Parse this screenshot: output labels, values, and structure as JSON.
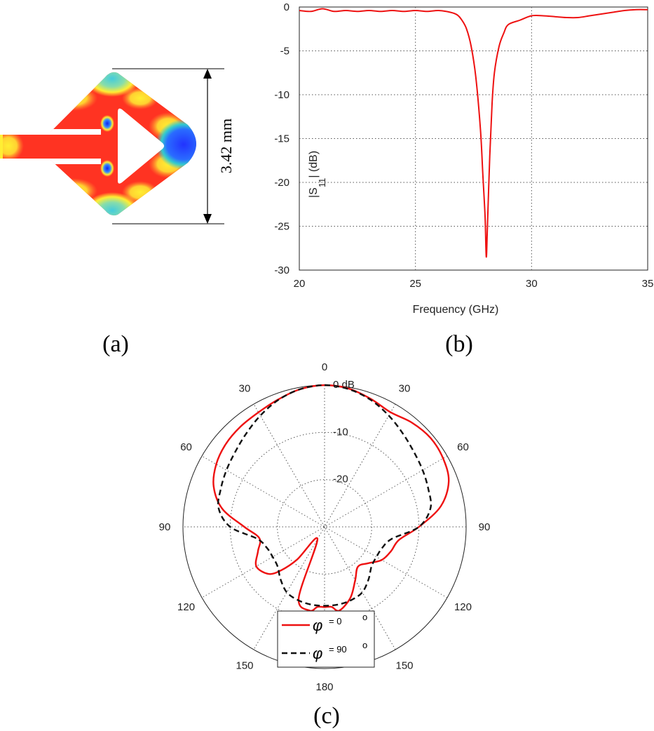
{
  "panels": {
    "a": {
      "caption": "(a)",
      "dimension_label": "3.42 mm",
      "colors": {
        "high": "#ff3322",
        "mid": "#ffee33",
        "low": "#3344ff",
        "mint": "#88ddaa"
      }
    },
    "b": {
      "caption": "(b)"
    },
    "c": {
      "caption": "(c)"
    }
  },
  "chart_data": [
    {
      "type": "line",
      "panel": "b",
      "title": "",
      "xlabel": "Frequency (GHz)",
      "ylabel": "|S",
      "ylabel_sub": "11",
      "ylabel_tail": "| (dB)",
      "xlim": [
        20,
        35
      ],
      "ylim": [
        -30,
        0
      ],
      "xticks": [
        20,
        25,
        30,
        35
      ],
      "yticks": [
        0,
        -5,
        -10,
        -15,
        -20,
        -25,
        -30
      ],
      "grid": true,
      "series": [
        {
          "color": "#ee1111",
          "x": [
            20,
            20.5,
            21,
            21.5,
            22,
            22.5,
            23,
            23.5,
            24,
            24.5,
            25,
            25.5,
            26,
            26.5,
            26.8,
            27,
            27.2,
            27.4,
            27.6,
            27.8,
            27.9,
            28,
            28.05,
            28.1,
            28.2,
            28.3,
            28.4,
            28.6,
            28.8,
            29,
            29.5,
            30,
            30.5,
            31,
            31.5,
            32,
            32.5,
            33,
            33.5,
            34,
            34.5,
            35
          ],
          "y": [
            -0.4,
            -0.5,
            -0.2,
            -0.5,
            -0.4,
            -0.5,
            -0.4,
            -0.5,
            -0.4,
            -0.5,
            -0.4,
            -0.5,
            -0.4,
            -0.6,
            -0.9,
            -1.5,
            -2.5,
            -4.5,
            -8,
            -14,
            -19,
            -24,
            -28.5,
            -25,
            -17,
            -11,
            -7.5,
            -4.5,
            -3,
            -2,
            -1.5,
            -1,
            -1,
            -1.1,
            -1.2,
            -1.2,
            -1,
            -0.8,
            -0.6,
            -0.4,
            -0.3,
            -0.3
          ]
        }
      ]
    },
    {
      "type": "polar",
      "panel": "c",
      "title": "",
      "rlim_db": [
        -30,
        0
      ],
      "ring_labels": [
        "0 dB",
        "-10",
        "-20"
      ],
      "ring_values_db": [
        0,
        -10,
        -20
      ],
      "angle_labels": [
        "0",
        "30",
        "60",
        "90",
        "120",
        "150",
        "180",
        "150",
        "120",
        "90",
        "60",
        "30"
      ],
      "angle_label_degrees": [
        0,
        30,
        60,
        90,
        120,
        150,
        180,
        210,
        240,
        270,
        300,
        330
      ],
      "grid": true,
      "legend": {
        "placement": "bottom-center",
        "entries": [
          {
            "symbol": "φ",
            "text": "= 0",
            "degree": "o"
          },
          {
            "symbol": "φ",
            "text": "= 90",
            "degree": "o"
          }
        ]
      },
      "series": [
        {
          "label": "phi-0",
          "color": "#ee1111",
          "dash": false,
          "theta": [
            0,
            10,
            20,
            30,
            40,
            50,
            60,
            70,
            80,
            90,
            100,
            110,
            120,
            130,
            140,
            150,
            160,
            170,
            175,
            180,
            185,
            190,
            200,
            210,
            220,
            225,
            230,
            240,
            250,
            260,
            270,
            280,
            290,
            300,
            310,
            320,
            330,
            340,
            350
          ],
          "r_db": [
            0,
            -0.3,
            -1.2,
            -2,
            -1.2,
            -0.7,
            -1,
            -2,
            -5,
            -10,
            -14,
            -15,
            -16,
            -18,
            -19,
            -17,
            -14,
            -12,
            -13,
            -13,
            -13,
            -12,
            -14,
            -27,
            -21,
            -17,
            -14.5,
            -13.3,
            -15,
            -16,
            -13,
            -8,
            -5,
            -3.5,
            -2.7,
            -2.3,
            -2,
            -1.3,
            -0.4
          ]
        },
        {
          "label": "phi-90",
          "color": "#111111",
          "dash": true,
          "theta": [
            0,
            10,
            20,
            30,
            40,
            50,
            60,
            70,
            80,
            90,
            100,
            110,
            120,
            130,
            140,
            150,
            160,
            170,
            180,
            190,
            200,
            210,
            220,
            230,
            240,
            250,
            260,
            270,
            280,
            290,
            300,
            310,
            320,
            330,
            340,
            350
          ],
          "r_db": [
            0,
            -0.4,
            -1.4,
            -2.8,
            -4.2,
            -5.3,
            -6,
            -6.6,
            -7.2,
            -10,
            -15.5,
            -17,
            -17.3,
            -17,
            -15.5,
            -14,
            -13.5,
            -13.3,
            -13.3,
            -13.3,
            -13.5,
            -14,
            -15.5,
            -17,
            -17.3,
            -17,
            -15.5,
            -10,
            -7.2,
            -6.6,
            -6,
            -5.3,
            -4.2,
            -2.8,
            -1.4,
            -0.4
          ]
        }
      ]
    }
  ]
}
